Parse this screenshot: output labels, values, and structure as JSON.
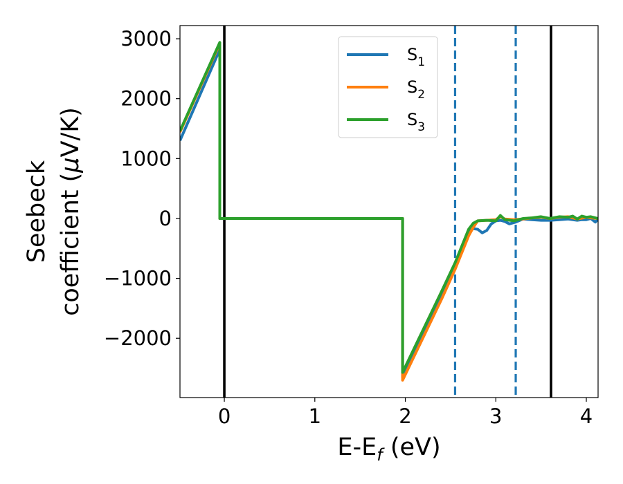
{
  "chart_data": {
    "type": "line",
    "xlabel": {
      "main": "E-E",
      "sub": "f",
      "tail": " (eV)"
    },
    "ylabel": {
      "line1": "Seebeck",
      "line2": "coefficient  (",
      "mu": "μ",
      "unit": "V/K)"
    },
    "xlim": [
      -0.49,
      4.13
    ],
    "ylim": [
      -2990,
      3220
    ],
    "xticks": [
      {
        "value": 0,
        "label": "0"
      },
      {
        "value": 1,
        "label": "1"
      },
      {
        "value": 2,
        "label": "2"
      },
      {
        "value": 3,
        "label": "3"
      },
      {
        "value": 4,
        "label": "4"
      }
    ],
    "yticks": [
      {
        "value": 3000,
        "label": "3000"
      },
      {
        "value": 2000,
        "label": "2000"
      },
      {
        "value": 1000,
        "label": "1000"
      },
      {
        "value": 0,
        "label": "0"
      },
      {
        "value": -1000,
        "label": "−1000"
      },
      {
        "value": -2000,
        "label": "−2000"
      }
    ],
    "vlines": [
      {
        "x": 0,
        "style": "solid",
        "color": "#000000"
      },
      {
        "x": 3.61,
        "style": "solid",
        "color": "#000000"
      },
      {
        "x": 2.55,
        "style": "dashed",
        "color": "#1f77b4"
      },
      {
        "x": 3.22,
        "style": "dashed",
        "color": "#1f77b4"
      }
    ],
    "legend": {
      "position": "upper-center"
    },
    "series": [
      {
        "name": "S",
        "sub": "1",
        "color": "#1f77b4",
        "x": [
          -0.49,
          -0.05,
          -0.05,
          1.97,
          1.97,
          2.4,
          2.55,
          2.7,
          2.75,
          2.8,
          2.85,
          2.9,
          2.95,
          3.0,
          3.05,
          3.1,
          3.15,
          3.22,
          3.3,
          3.4,
          3.5,
          3.6,
          3.7,
          3.8,
          3.9,
          3.95,
          4.0,
          4.05,
          4.1,
          4.13
        ],
        "y": [
          1300,
          2820,
          0,
          0,
          -2650,
          -1260,
          -780,
          -220,
          -170,
          -180,
          -240,
          -200,
          -90,
          -40,
          -30,
          -50,
          -90,
          -60,
          -10,
          -20,
          -30,
          -30,
          -20,
          -10,
          -30,
          -20,
          -20,
          0,
          -60,
          -10
        ]
      },
      {
        "name": "S",
        "sub": "2",
        "color": "#ff7f0e",
        "x": [
          -0.49,
          -0.05,
          -0.05,
          1.97,
          1.97,
          2.4,
          2.55,
          2.7,
          2.75,
          2.8,
          2.9,
          3.0,
          3.05,
          3.1,
          3.2,
          3.3,
          3.4,
          3.5,
          3.6,
          3.7,
          3.8,
          3.9,
          4.0,
          4.05,
          4.13
        ],
        "y": [
          1440,
          2920,
          0,
          0,
          -2700,
          -1350,
          -850,
          -290,
          -150,
          -40,
          -30,
          -20,
          30,
          -10,
          -20,
          -10,
          10,
          20,
          0,
          20,
          30,
          -10,
          20,
          10,
          0
        ]
      },
      {
        "name": "S",
        "sub": "3",
        "color": "#2ca02c",
        "x": [
          -0.49,
          -0.05,
          -0.05,
          1.97,
          1.97,
          2.4,
          2.55,
          2.7,
          2.75,
          2.8,
          2.9,
          3.0,
          3.05,
          3.1,
          3.2,
          3.3,
          3.4,
          3.5,
          3.6,
          3.7,
          3.8,
          3.85,
          3.9,
          3.95,
          4.0,
          4.05,
          4.13
        ],
        "y": [
          1460,
          2940,
          0,
          0,
          -2570,
          -1220,
          -740,
          -180,
          -80,
          -40,
          -30,
          -40,
          50,
          -20,
          -40,
          0,
          10,
          30,
          0,
          30,
          20,
          40,
          -10,
          40,
          20,
          30,
          0
        ]
      }
    ]
  }
}
